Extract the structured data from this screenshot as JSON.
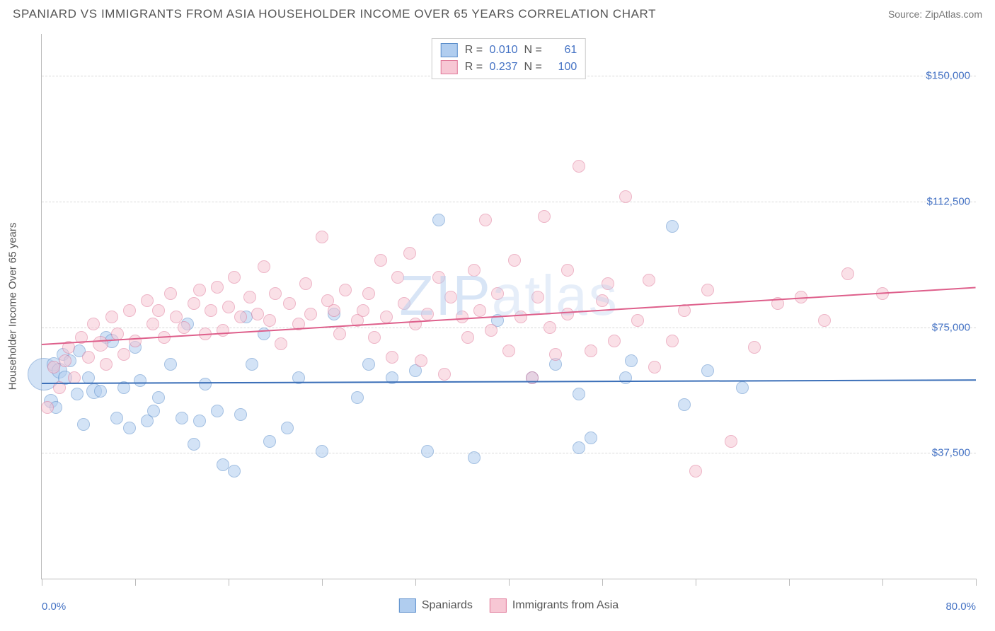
{
  "title": "SPANIARD VS IMMIGRANTS FROM ASIA HOUSEHOLDER INCOME OVER 65 YEARS CORRELATION CHART",
  "source": "Source: ZipAtlas.com",
  "watermark": "ZIPatlas",
  "watermark_color": "#b9d0ef",
  "chart": {
    "type": "scatter",
    "background_color": "#ffffff",
    "grid_color": "#d9d9d9",
    "xlim": [
      0,
      80
    ],
    "ylim": [
      0,
      162500
    ],
    "y_ticks": [
      37500,
      75000,
      112500,
      150000
    ],
    "y_tick_labels": [
      "$37,500",
      "$75,000",
      "$112,500",
      "$150,000"
    ],
    "x_tick_positions": [
      0,
      8,
      16,
      24,
      32,
      40,
      48,
      56,
      64,
      72,
      80
    ],
    "x_label_min": "0.0%",
    "x_label_max": "80.0%",
    "y_axis_title": "Householder Income Over 65 years",
    "label_color": "#4472c4",
    "axis_text_color": "#555555"
  },
  "series": [
    {
      "name": "Spaniards",
      "fill": "#b0cdef",
      "stroke": "#5b8ecb",
      "fill_opacity": 0.55,
      "r_stat": "0.010",
      "n_stat": "61",
      "trend": {
        "y_start": 58500,
        "y_end": 59500,
        "color": "#3b6fb8"
      },
      "points": [
        {
          "x": 0.2,
          "y": 61000,
          "r": 22
        },
        {
          "x": 0.8,
          "y": 53000,
          "r": 9
        },
        {
          "x": 1.0,
          "y": 64000,
          "r": 9
        },
        {
          "x": 1.5,
          "y": 62000,
          "r": 10
        },
        {
          "x": 1.8,
          "y": 67000,
          "r": 8
        },
        {
          "x": 1.2,
          "y": 51000,
          "r": 8
        },
        {
          "x": 2.0,
          "y": 60000,
          "r": 9
        },
        {
          "x": 2.4,
          "y": 65000,
          "r": 8
        },
        {
          "x": 3.0,
          "y": 55000,
          "r": 8
        },
        {
          "x": 3.2,
          "y": 68000,
          "r": 8
        },
        {
          "x": 3.6,
          "y": 46000,
          "r": 8
        },
        {
          "x": 4.0,
          "y": 60000,
          "r": 8
        },
        {
          "x": 4.5,
          "y": 56000,
          "r": 10
        },
        {
          "x": 5.0,
          "y": 56000,
          "r": 8
        },
        {
          "x": 5.5,
          "y": 72000,
          "r": 8
        },
        {
          "x": 6.0,
          "y": 71000,
          "r": 9
        },
        {
          "x": 6.4,
          "y": 48000,
          "r": 8
        },
        {
          "x": 7.0,
          "y": 57000,
          "r": 8
        },
        {
          "x": 7.5,
          "y": 45000,
          "r": 8
        },
        {
          "x": 8.0,
          "y": 69000,
          "r": 8
        },
        {
          "x": 8.4,
          "y": 59000,
          "r": 8
        },
        {
          "x": 9.0,
          "y": 47000,
          "r": 8
        },
        {
          "x": 9.6,
          "y": 50000,
          "r": 8
        },
        {
          "x": 10.0,
          "y": 54000,
          "r": 8
        },
        {
          "x": 11.0,
          "y": 64000,
          "r": 8
        },
        {
          "x": 12.0,
          "y": 48000,
          "r": 8
        },
        {
          "x": 12.5,
          "y": 76000,
          "r": 8
        },
        {
          "x": 13.0,
          "y": 40000,
          "r": 8
        },
        {
          "x": 13.5,
          "y": 47000,
          "r": 8
        },
        {
          "x": 14.0,
          "y": 58000,
          "r": 8
        },
        {
          "x": 15.0,
          "y": 50000,
          "r": 8
        },
        {
          "x": 15.5,
          "y": 34000,
          "r": 8
        },
        {
          "x": 16.5,
          "y": 32000,
          "r": 8
        },
        {
          "x": 17.0,
          "y": 49000,
          "r": 8
        },
        {
          "x": 17.5,
          "y": 78000,
          "r": 8
        },
        {
          "x": 18.0,
          "y": 64000,
          "r": 8
        },
        {
          "x": 19.0,
          "y": 73000,
          "r": 8
        },
        {
          "x": 19.5,
          "y": 41000,
          "r": 8
        },
        {
          "x": 21.0,
          "y": 45000,
          "r": 8
        },
        {
          "x": 22.0,
          "y": 60000,
          "r": 8
        },
        {
          "x": 24.0,
          "y": 38000,
          "r": 8
        },
        {
          "x": 25.0,
          "y": 79000,
          "r": 8
        },
        {
          "x": 27.0,
          "y": 54000,
          "r": 8
        },
        {
          "x": 28.0,
          "y": 64000,
          "r": 8
        },
        {
          "x": 30.0,
          "y": 60000,
          "r": 8
        },
        {
          "x": 32.0,
          "y": 62000,
          "r": 8
        },
        {
          "x": 33.0,
          "y": 38000,
          "r": 8
        },
        {
          "x": 34.0,
          "y": 107000,
          "r": 8
        },
        {
          "x": 37.0,
          "y": 36000,
          "r": 8
        },
        {
          "x": 39.0,
          "y": 77000,
          "r": 8
        },
        {
          "x": 42.0,
          "y": 60000,
          "r": 8
        },
        {
          "x": 44.0,
          "y": 64000,
          "r": 8
        },
        {
          "x": 46.0,
          "y": 39000,
          "r": 8
        },
        {
          "x": 47.0,
          "y": 42000,
          "r": 8
        },
        {
          "x": 50.0,
          "y": 60000,
          "r": 8
        },
        {
          "x": 50.5,
          "y": 65000,
          "r": 8
        },
        {
          "x": 54.0,
          "y": 105000,
          "r": 8
        },
        {
          "x": 55.0,
          "y": 52000,
          "r": 8
        },
        {
          "x": 57.0,
          "y": 62000,
          "r": 8
        },
        {
          "x": 60.0,
          "y": 57000,
          "r": 8
        },
        {
          "x": 46.0,
          "y": 55000,
          "r": 8
        }
      ]
    },
    {
      "name": "Immigrants from Asia",
      "fill": "#f7c7d4",
      "stroke": "#e07a9a",
      "fill_opacity": 0.55,
      "r_stat": "0.237",
      "n_stat": "100",
      "trend": {
        "y_start": 70000,
        "y_end": 87000,
        "color": "#de5f8b"
      },
      "points": [
        {
          "x": 0.5,
          "y": 51000,
          "r": 8
        },
        {
          "x": 1.0,
          "y": 63000,
          "r": 8
        },
        {
          "x": 1.5,
          "y": 57000,
          "r": 8
        },
        {
          "x": 2.0,
          "y": 65000,
          "r": 8
        },
        {
          "x": 2.3,
          "y": 69000,
          "r": 8
        },
        {
          "x": 2.8,
          "y": 60000,
          "r": 8
        },
        {
          "x": 3.4,
          "y": 72000,
          "r": 8
        },
        {
          "x": 4.0,
          "y": 66000,
          "r": 8
        },
        {
          "x": 4.4,
          "y": 76000,
          "r": 8
        },
        {
          "x": 5.0,
          "y": 70000,
          "r": 10
        },
        {
          "x": 5.5,
          "y": 64000,
          "r": 8
        },
        {
          "x": 6.0,
          "y": 78000,
          "r": 8
        },
        {
          "x": 6.5,
          "y": 73000,
          "r": 8
        },
        {
          "x": 7.0,
          "y": 67000,
          "r": 8
        },
        {
          "x": 7.5,
          "y": 80000,
          "r": 8
        },
        {
          "x": 8.0,
          "y": 71000,
          "r": 8
        },
        {
          "x": 9.0,
          "y": 83000,
          "r": 8
        },
        {
          "x": 9.5,
          "y": 76000,
          "r": 8
        },
        {
          "x": 10.0,
          "y": 80000,
          "r": 8
        },
        {
          "x": 10.5,
          "y": 72000,
          "r": 8
        },
        {
          "x": 11.0,
          "y": 85000,
          "r": 8
        },
        {
          "x": 11.5,
          "y": 78000,
          "r": 8
        },
        {
          "x": 12.2,
          "y": 75000,
          "r": 8
        },
        {
          "x": 13.0,
          "y": 82000,
          "r": 8
        },
        {
          "x": 13.5,
          "y": 86000,
          "r": 8
        },
        {
          "x": 14.0,
          "y": 73000,
          "r": 8
        },
        {
          "x": 14.5,
          "y": 80000,
          "r": 8
        },
        {
          "x": 15.0,
          "y": 87000,
          "r": 8
        },
        {
          "x": 15.5,
          "y": 74000,
          "r": 8
        },
        {
          "x": 16.0,
          "y": 81000,
          "r": 8
        },
        {
          "x": 16.5,
          "y": 90000,
          "r": 8
        },
        {
          "x": 17.0,
          "y": 78000,
          "r": 8
        },
        {
          "x": 17.8,
          "y": 84000,
          "r": 8
        },
        {
          "x": 18.5,
          "y": 79000,
          "r": 8
        },
        {
          "x": 19.0,
          "y": 93000,
          "r": 8
        },
        {
          "x": 19.5,
          "y": 77000,
          "r": 8
        },
        {
          "x": 20.0,
          "y": 85000,
          "r": 8
        },
        {
          "x": 20.5,
          "y": 70000,
          "r": 8
        },
        {
          "x": 21.2,
          "y": 82000,
          "r": 8
        },
        {
          "x": 22.0,
          "y": 76000,
          "r": 8
        },
        {
          "x": 22.6,
          "y": 88000,
          "r": 8
        },
        {
          "x": 23.0,
          "y": 79000,
          "r": 8
        },
        {
          "x": 24.0,
          "y": 102000,
          "r": 8
        },
        {
          "x": 24.5,
          "y": 83000,
          "r": 8
        },
        {
          "x": 25.0,
          "y": 80000,
          "r": 8
        },
        {
          "x": 25.5,
          "y": 73000,
          "r": 8
        },
        {
          "x": 26.0,
          "y": 86000,
          "r": 8
        },
        {
          "x": 27.0,
          "y": 77000,
          "r": 8
        },
        {
          "x": 27.5,
          "y": 80000,
          "r": 8
        },
        {
          "x": 28.0,
          "y": 85000,
          "r": 8
        },
        {
          "x": 28.5,
          "y": 72000,
          "r": 8
        },
        {
          "x": 29.0,
          "y": 95000,
          "r": 8
        },
        {
          "x": 29.5,
          "y": 78000,
          "r": 8
        },
        {
          "x": 30.0,
          "y": 66000,
          "r": 8
        },
        {
          "x": 30.5,
          "y": 90000,
          "r": 8
        },
        {
          "x": 31.0,
          "y": 82000,
          "r": 8
        },
        {
          "x": 31.5,
          "y": 97000,
          "r": 8
        },
        {
          "x": 32.0,
          "y": 76000,
          "r": 8
        },
        {
          "x": 32.5,
          "y": 65000,
          "r": 8
        },
        {
          "x": 33.0,
          "y": 79000,
          "r": 8
        },
        {
          "x": 34.0,
          "y": 90000,
          "r": 8
        },
        {
          "x": 34.5,
          "y": 61000,
          "r": 8
        },
        {
          "x": 35.0,
          "y": 84000,
          "r": 8
        },
        {
          "x": 36.0,
          "y": 78000,
          "r": 8
        },
        {
          "x": 36.5,
          "y": 72000,
          "r": 8
        },
        {
          "x": 37.0,
          "y": 92000,
          "r": 8
        },
        {
          "x": 37.5,
          "y": 80000,
          "r": 8
        },
        {
          "x": 38.0,
          "y": 107000,
          "r": 8
        },
        {
          "x": 38.5,
          "y": 74000,
          "r": 8
        },
        {
          "x": 39.0,
          "y": 85000,
          "r": 8
        },
        {
          "x": 40.0,
          "y": 68000,
          "r": 8
        },
        {
          "x": 40.5,
          "y": 95000,
          "r": 8
        },
        {
          "x": 41.0,
          "y": 78000,
          "r": 8
        },
        {
          "x": 42.0,
          "y": 60000,
          "r": 8
        },
        {
          "x": 42.5,
          "y": 84000,
          "r": 8
        },
        {
          "x": 43.0,
          "y": 108000,
          "r": 8
        },
        {
          "x": 44.0,
          "y": 67000,
          "r": 8
        },
        {
          "x": 43.5,
          "y": 75000,
          "r": 8
        },
        {
          "x": 45.0,
          "y": 79000,
          "r": 8
        },
        {
          "x": 45.0,
          "y": 92000,
          "r": 8
        },
        {
          "x": 46.0,
          "y": 123000,
          "r": 8
        },
        {
          "x": 47.0,
          "y": 68000,
          "r": 8
        },
        {
          "x": 48.0,
          "y": 83000,
          "r": 8
        },
        {
          "x": 48.5,
          "y": 88000,
          "r": 8
        },
        {
          "x": 49.0,
          "y": 71000,
          "r": 8
        },
        {
          "x": 50.0,
          "y": 114000,
          "r": 8
        },
        {
          "x": 51.0,
          "y": 77000,
          "r": 8
        },
        {
          "x": 52.0,
          "y": 89000,
          "r": 8
        },
        {
          "x": 52.5,
          "y": 63000,
          "r": 8
        },
        {
          "x": 54.0,
          "y": 71000,
          "r": 8
        },
        {
          "x": 55.0,
          "y": 80000,
          "r": 8
        },
        {
          "x": 56.0,
          "y": 32000,
          "r": 8
        },
        {
          "x": 57.0,
          "y": 86000,
          "r": 8
        },
        {
          "x": 59.0,
          "y": 41000,
          "r": 8
        },
        {
          "x": 61.0,
          "y": 69000,
          "r": 8
        },
        {
          "x": 63.0,
          "y": 82000,
          "r": 8
        },
        {
          "x": 65.0,
          "y": 84000,
          "r": 8
        },
        {
          "x": 67.0,
          "y": 77000,
          "r": 8
        },
        {
          "x": 69.0,
          "y": 91000,
          "r": 8
        },
        {
          "x": 72.0,
          "y": 85000,
          "r": 8
        }
      ]
    }
  ],
  "bottom_legend": [
    {
      "label": "Spaniards",
      "fill": "#b0cdef",
      "stroke": "#5b8ecb"
    },
    {
      "label": "Immigrants from Asia",
      "fill": "#f7c7d4",
      "stroke": "#e07a9a"
    }
  ]
}
